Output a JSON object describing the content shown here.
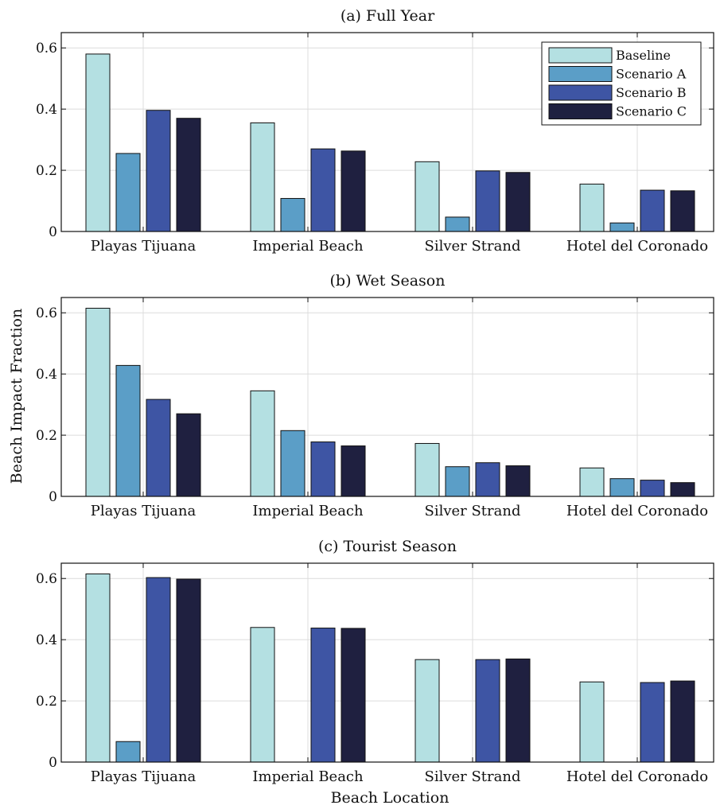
{
  "figure": {
    "xlabel": "Beach Location",
    "ylabel": "Beach Impact Fraction"
  },
  "legend": {
    "placement": "top-right",
    "entries": [
      "Baseline",
      "Scenario A",
      "Scenario B",
      "Scenario C"
    ]
  },
  "colors": {
    "Baseline": "#b4e0e2",
    "Scenario A": "#5b9ec7",
    "Scenario B": "#3e55a4",
    "Scenario C": "#1f2040",
    "grid": "#dcdcdc",
    "axes": "#111111"
  },
  "chart_data": [
    {
      "type": "bar",
      "title": "(a) Full Year",
      "categories": [
        "Playas Tijuana",
        "Imperial Beach",
        "Silver Strand",
        "Hotel del Coronado"
      ],
      "series": [
        {
          "name": "Baseline",
          "values": [
            0.58,
            0.355,
            0.228,
            0.155
          ]
        },
        {
          "name": "Scenario A",
          "values": [
            0.255,
            0.108,
            0.047,
            0.028
          ]
        },
        {
          "name": "Scenario B",
          "values": [
            0.396,
            0.27,
            0.198,
            0.135
          ]
        },
        {
          "name": "Scenario C",
          "values": [
            0.37,
            0.263,
            0.193,
            0.133
          ]
        }
      ],
      "ylim": [
        0,
        0.65
      ],
      "yticks": [
        0,
        0.2,
        0.4,
        0.6
      ],
      "ytick_labels": [
        "0",
        "0.2",
        "0.4",
        "0.6"
      ],
      "grid": true,
      "legend": true
    },
    {
      "type": "bar",
      "title": "(b) Wet Season",
      "categories": [
        "Playas Tijuana",
        "Imperial Beach",
        "Silver Strand",
        "Hotel del Coronado"
      ],
      "series": [
        {
          "name": "Baseline",
          "values": [
            0.615,
            0.345,
            0.173,
            0.093
          ]
        },
        {
          "name": "Scenario A",
          "values": [
            0.428,
            0.215,
            0.097,
            0.058
          ]
        },
        {
          "name": "Scenario B",
          "values": [
            0.317,
            0.178,
            0.11,
            0.053
          ]
        },
        {
          "name": "Scenario C",
          "values": [
            0.27,
            0.165,
            0.1,
            0.045
          ]
        }
      ],
      "ylim": [
        0,
        0.65
      ],
      "yticks": [
        0,
        0.2,
        0.4,
        0.6
      ],
      "ytick_labels": [
        "0",
        "0.2",
        "0.4",
        "0.6"
      ],
      "grid": true,
      "legend": false
    },
    {
      "type": "bar",
      "title": "(c) Tourist Season",
      "categories": [
        "Playas Tijuana",
        "Imperial Beach",
        "Silver Strand",
        "Hotel del Coronado"
      ],
      "series": [
        {
          "name": "Baseline",
          "values": [
            0.615,
            0.44,
            0.335,
            0.262
          ]
        },
        {
          "name": "Scenario A",
          "values": [
            0.067,
            0.0,
            0.0,
            0.0
          ]
        },
        {
          "name": "Scenario B",
          "values": [
            0.603,
            0.438,
            0.335,
            0.26
          ]
        },
        {
          "name": "Scenario C",
          "values": [
            0.598,
            0.437,
            0.337,
            0.265
          ]
        }
      ],
      "ylim": [
        0,
        0.65
      ],
      "yticks": [
        0,
        0.2,
        0.4,
        0.6
      ],
      "ytick_labels": [
        "0",
        "0.2",
        "0.4",
        "0.6"
      ],
      "grid": true,
      "legend": false
    }
  ]
}
